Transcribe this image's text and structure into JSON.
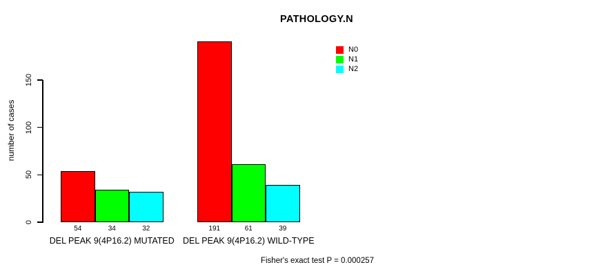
{
  "chart_data": {
    "type": "bar",
    "title": "PATHOLOGY.N",
    "xlabel": "",
    "ylabel": "number of cases",
    "categories": [
      "DEL PEAK 9(4P16.2) MUTATED",
      "DEL PEAK 9(4P16.2) WILD-TYPE"
    ],
    "series": [
      {
        "name": "N0",
        "color": "#ff0000",
        "values": [
          54,
          191
        ]
      },
      {
        "name": "N1",
        "color": "#00ff00",
        "values": [
          34,
          61
        ]
      },
      {
        "name": "N2",
        "color": "#00ffff",
        "values": [
          32,
          39
        ]
      }
    ],
    "yticks": [
      0,
      50,
      100,
      150
    ],
    "ylim": [
      0,
      150
    ],
    "bar_values_shown": true,
    "grid": false,
    "legend_position": "top-right",
    "annotation": "Fisher's exact test P = 0.000257"
  }
}
